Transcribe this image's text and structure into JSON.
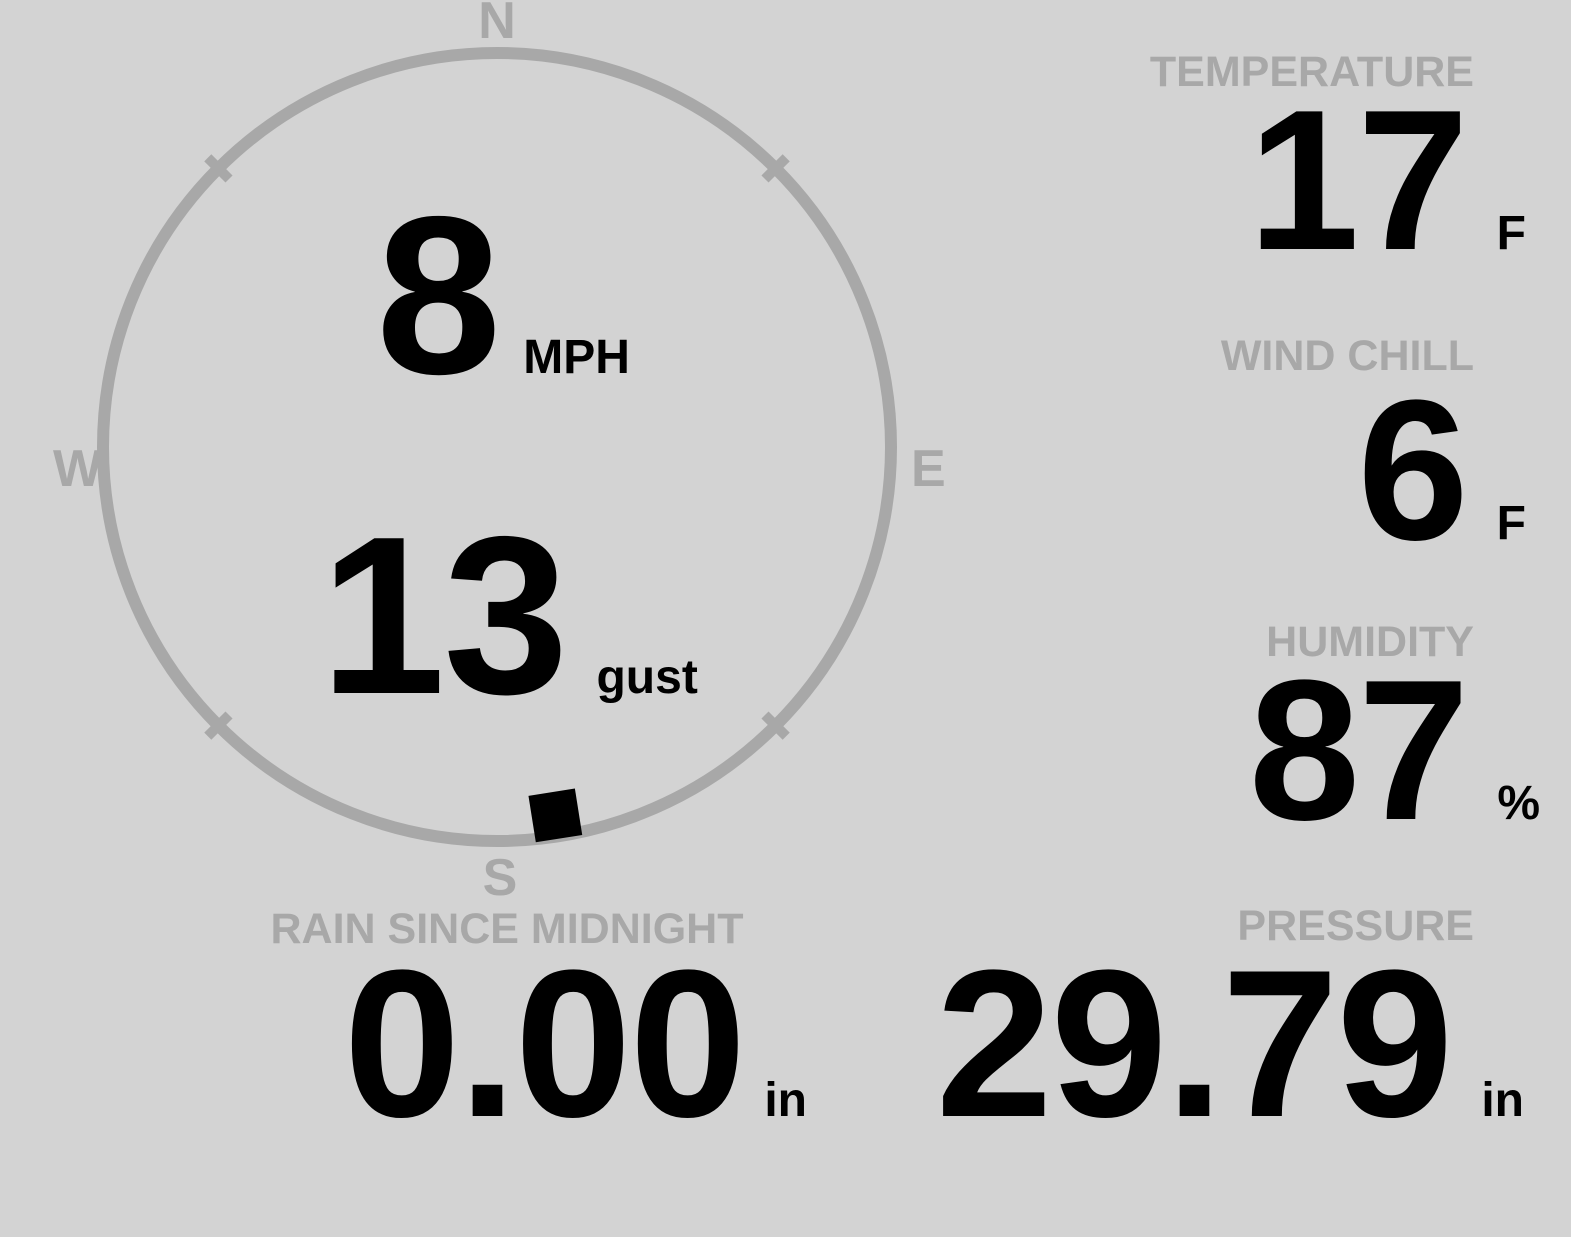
{
  "theme": {
    "background_color": "#d3d3d3",
    "muted_color": "#a8a8a8",
    "value_color": "#000000"
  },
  "compass": {
    "cardinals": {
      "north": "N",
      "east": "E",
      "south": "S",
      "west": "W"
    },
    "wind_speed": {
      "value": "8",
      "unit": "MPH"
    },
    "wind_gust": {
      "value": "13",
      "unit": "gust"
    },
    "direction_degrees": 171
  },
  "metrics": {
    "temperature": {
      "label": "TEMPERATURE",
      "value": "17",
      "unit": "F"
    },
    "wind_chill": {
      "label": "WIND CHILL",
      "value": "6",
      "unit": "F"
    },
    "humidity": {
      "label": "HUMIDITY",
      "value": "87",
      "unit": "%"
    },
    "rain_since_midnight": {
      "label": "RAIN SINCE MIDNIGHT",
      "value": "0.00",
      "unit": "in"
    },
    "pressure": {
      "label": "PRESSURE",
      "value": "29.79",
      "unit": "in"
    }
  }
}
